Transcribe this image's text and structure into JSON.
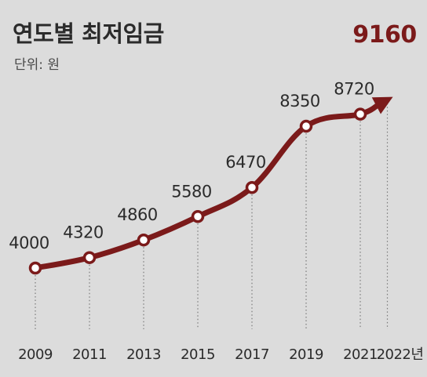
{
  "title": "연도별 최저임금",
  "unit_label": "단위: 원",
  "colors": {
    "background": "#dcdcdc",
    "line": "#7b1a1a",
    "text": "#2b2b2b",
    "guide": "#7a7a7a"
  },
  "chart_data": {
    "type": "line",
    "title": "연도별 최저임금",
    "ylabel": "단위: 원",
    "grid": false,
    "x_tick_labels": [
      "2009",
      "2011",
      "2013",
      "2015",
      "2017",
      "2019",
      "2021",
      "2022년"
    ],
    "series": [
      {
        "x": [
          2009,
          2011,
          2013,
          2015,
          2017,
          2019,
          2021,
          2022
        ],
        "values": [
          4000,
          4320,
          4860,
          5580,
          6470,
          8350,
          8720,
          9160
        ],
        "labels": [
          "4000",
          "4320",
          "4860",
          "5580",
          "6470",
          "8350",
          "8720",
          "9160"
        ]
      }
    ],
    "highlight_last": true,
    "last_marker": "arrow"
  }
}
